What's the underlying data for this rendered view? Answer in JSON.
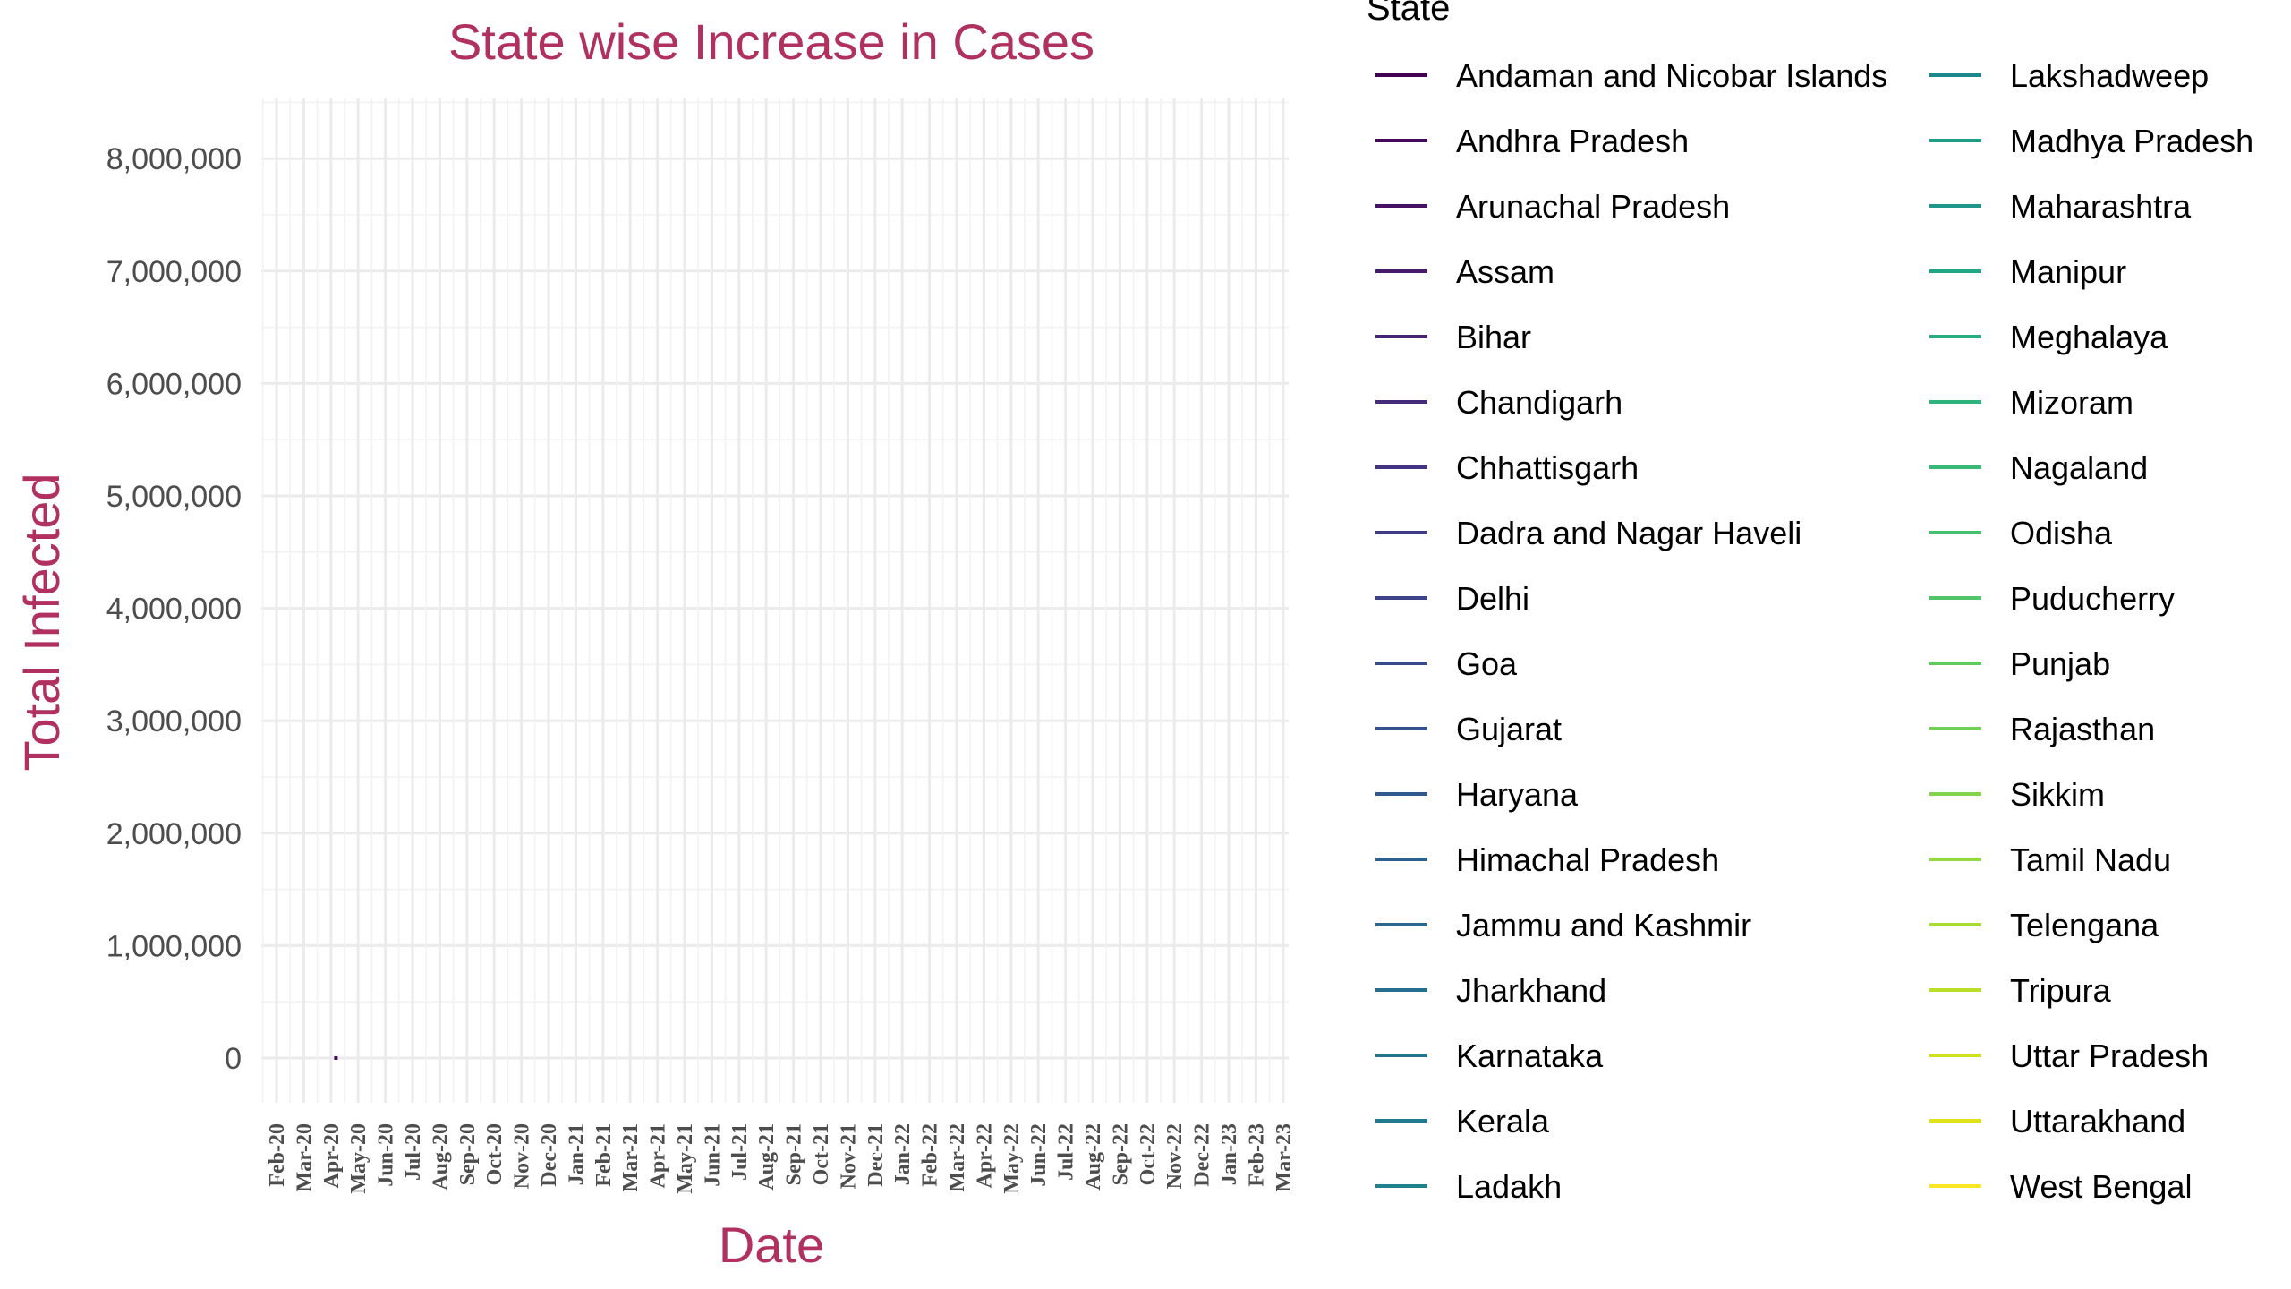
{
  "chart_data": {
    "type": "line",
    "title": "State wise Increase in Cases",
    "xlabel": "Date",
    "ylabel": "Total Infected",
    "ylim": [
      0,
      8000000
    ],
    "y_ticks": [
      "0",
      "1,000,000",
      "2,000,000",
      "3,000,000",
      "4,000,000",
      "5,000,000",
      "6,000,000",
      "7,000,000",
      "8,000,000"
    ],
    "y_tick_values": [
      0,
      1000000,
      2000000,
      3000000,
      4000000,
      5000000,
      6000000,
      7000000,
      8000000
    ],
    "x_ticks": [
      "Feb-20",
      "Mar-20",
      "Apr-20",
      "May-20",
      "Jun-20",
      "Jul-20",
      "Aug-20",
      "Sep-20",
      "Oct-20",
      "Nov-20",
      "Dec-20",
      "Jan-21",
      "Feb-21",
      "Mar-21",
      "Apr-21",
      "May-21",
      "Jun-21",
      "Jul-21",
      "Aug-21",
      "Sep-21",
      "Oct-21",
      "Nov-21",
      "Dec-21",
      "Jan-22",
      "Feb-22",
      "Mar-22",
      "Apr-22",
      "May-22",
      "Jun-22",
      "Jul-22",
      "Aug-22",
      "Sep-22",
      "Oct-22",
      "Nov-22",
      "Dec-22",
      "Jan-23",
      "Feb-23",
      "Mar-23"
    ],
    "grid": true,
    "legend": {
      "title": "State",
      "placement": "right",
      "entries": [
        {
          "name": "Andaman and Nicobar Islands",
          "color": "#440154"
        },
        {
          "name": "Andhra Pradesh",
          "color": "#450a5c"
        },
        {
          "name": "Arunachal Pradesh",
          "color": "#471264"
        },
        {
          "name": "Assam",
          "color": "#471a6c"
        },
        {
          "name": "Bihar",
          "color": "#472373"
        },
        {
          "name": "Chandigarh",
          "color": "#462b7a"
        },
        {
          "name": "Chhattisgarh",
          "color": "#433380"
        },
        {
          "name": "Dadra and Nagar Haveli",
          "color": "#403b85"
        },
        {
          "name": "Delhi",
          "color": "#3c4388"
        },
        {
          "name": "Goa",
          "color": "#384a8b"
        },
        {
          "name": "Gujarat",
          "color": "#34528d"
        },
        {
          "name": "Haryana",
          "color": "#30598e"
        },
        {
          "name": "Himachal Pradesh",
          "color": "#2c608e"
        },
        {
          "name": "Jammu and Kashmir",
          "color": "#29678e"
        },
        {
          "name": "Jharkhand",
          "color": "#266e8e"
        },
        {
          "name": "Karnataka",
          "color": "#23748e"
        },
        {
          "name": "Kerala",
          "color": "#207b8e"
        },
        {
          "name": "Ladakh",
          "color": "#1e828d"
        },
        {
          "name": "Lakshadweep",
          "color": "#1c888c"
        },
        {
          "name": "Madhya Pradesh",
          "color": "#1f9f88"
        },
        {
          "name": "Maharashtra",
          "color": "#1f9689"
        },
        {
          "name": "Manipur",
          "color": "#21a685"
        },
        {
          "name": "Meghalaya",
          "color": "#26ad81"
        },
        {
          "name": "Mizoram",
          "color": "#2eb37c"
        },
        {
          "name": "Nagaland",
          "color": "#38b977"
        },
        {
          "name": "Odisha",
          "color": "#45bf70"
        },
        {
          "name": "Puducherry",
          "color": "#52c569"
        },
        {
          "name": "Punjab",
          "color": "#62cb5f"
        },
        {
          "name": "Rajasthan",
          "color": "#73d056"
        },
        {
          "name": "Sikkim",
          "color": "#84d44b"
        },
        {
          "name": "Tamil Nadu",
          "color": "#95d840"
        },
        {
          "name": "Telengana",
          "color": "#a8db34"
        },
        {
          "name": "Tripura",
          "color": "#bade28"
        },
        {
          "name": "Uttar Pradesh",
          "color": "#cde11d"
        },
        {
          "name": "Uttarakhand",
          "color": "#dfe318"
        },
        {
          "name": "West Bengal",
          "color": "#fde725"
        }
      ]
    },
    "series": [
      {
        "name": "Andhra Pradesh",
        "x": [
          "Mar-20"
        ],
        "values": [
          0
        ]
      }
    ]
  }
}
